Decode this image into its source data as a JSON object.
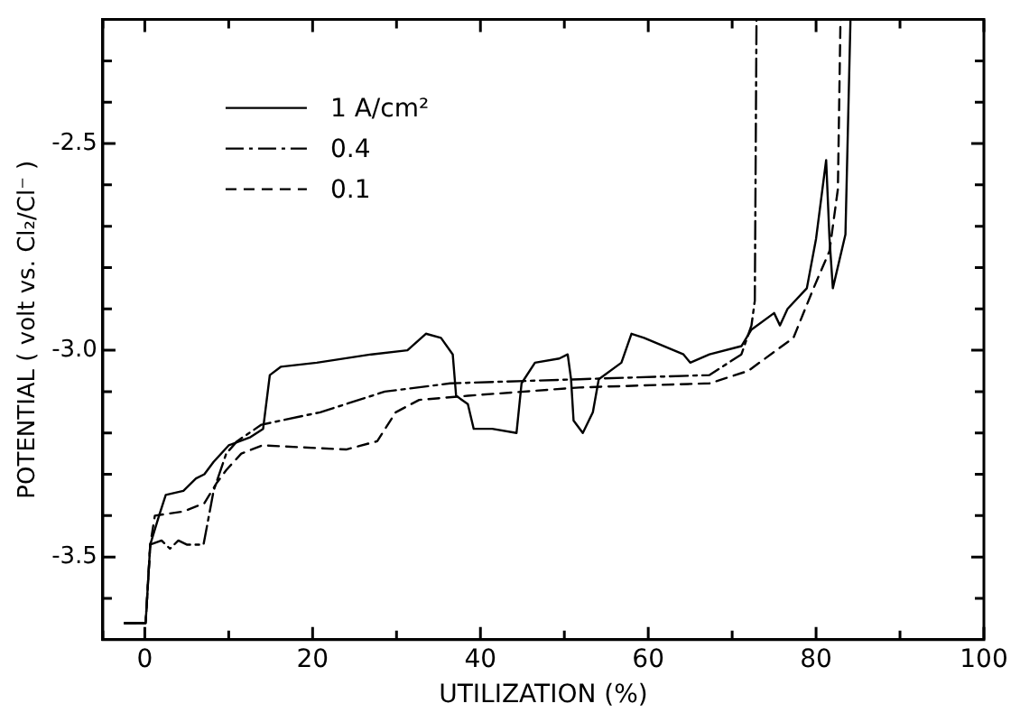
{
  "chart_data": {
    "type": "line",
    "xlabel": "UTILIZATION (%)",
    "ylabel": "POTENTIAL ( volt vs. Cl₂/Cl⁻ )",
    "xlim": [
      -5,
      100
    ],
    "ylim": [
      -3.7,
      -2.2
    ],
    "xticks": [
      {
        "value": -5,
        "label": null
      },
      0,
      {
        "value": 10,
        "label": null
      },
      20,
      {
        "value": 30,
        "label": null
      },
      40,
      {
        "value": 50,
        "label": null
      },
      60,
      {
        "value": 70,
        "label": null
      },
      80,
      {
        "value": 90,
        "label": null
      },
      100
    ],
    "yticks": [
      {
        "value": -3.6,
        "label": null
      },
      {
        "value": -3.5,
        "label": "-3.5"
      },
      {
        "value": -3.4,
        "label": null
      },
      {
        "value": -3.3,
        "label": null
      },
      {
        "value": -3.2,
        "label": null
      },
      {
        "value": -3.1,
        "label": null
      },
      {
        "value": -3.0,
        "label": "-3.0"
      },
      {
        "value": -2.9,
        "label": null
      },
      {
        "value": -2.8,
        "label": null
      },
      {
        "value": -2.7,
        "label": null
      },
      {
        "value": -2.6,
        "label": null
      },
      {
        "value": -2.5,
        "label": "-2.5"
      },
      {
        "value": -2.4,
        "label": null
      },
      {
        "value": -2.3,
        "label": null
      }
    ],
    "legend": "top left",
    "marker": "none",
    "grid": false,
    "series": [
      {
        "name": "1 A/cm²",
        "color": "#000000",
        "line_style": "solid",
        "x": [
          -2.4,
          0.1,
          0.65,
          1.7,
          2.5,
          4.6,
          6.1,
          7.1,
          8.2,
          10,
          12.6,
          14.1,
          14.9,
          16.2,
          20.5,
          27,
          31.3,
          33.5,
          35.3,
          36.7,
          37.1,
          38.5,
          39.2,
          41.4,
          44.3,
          44.9,
          46.5,
          49.4,
          50.4,
          50.8,
          51.1,
          52.2,
          53.4,
          54.1,
          56.8,
          58,
          59.5,
          64.2,
          65,
          67.3,
          71.1,
          72.3,
          75,
          75.7,
          76.6,
          78.9,
          80,
          81.2,
          81.6,
          82,
          83.5,
          84.1
        ],
        "values": [
          -3.66,
          -3.66,
          -3.47,
          -3.4,
          -3.35,
          -3.34,
          -3.31,
          -3.3,
          -3.27,
          -3.23,
          -3.21,
          -3.19,
          -3.06,
          -3.04,
          -3.03,
          -3.01,
          -3,
          -2.96,
          -2.97,
          -3.01,
          -3.11,
          -3.13,
          -3.19,
          -3.19,
          -3.2,
          -3.08,
          -3.03,
          -3.02,
          -3.01,
          -3.07,
          -3.17,
          -3.2,
          -3.15,
          -3.07,
          -3.03,
          -2.96,
          -2.97,
          -3.01,
          -3.03,
          -3.01,
          -2.99,
          -2.95,
          -2.91,
          -2.94,
          -2.9,
          -2.85,
          -2.73,
          -2.54,
          -2.73,
          -2.85,
          -2.72,
          -2.2
        ]
      },
      {
        "name": "0.4",
        "color": "#000000",
        "line_style": "dashdot",
        "x": [
          -2.4,
          0.1,
          0.65,
          2,
          3,
          4,
          5,
          7,
          8.2,
          9.7,
          11,
          13.9,
          20.9,
          28.6,
          36.4,
          51.8,
          67.3,
          71.1,
          72.3,
          72.7,
          72.9
        ],
        "values": [
          -3.66,
          -3.66,
          -3.47,
          -3.46,
          -3.48,
          -3.46,
          -3.47,
          -3.47,
          -3.34,
          -3.25,
          -3.22,
          -3.18,
          -3.15,
          -3.1,
          -3.08,
          -3.07,
          -3.06,
          -3.01,
          -2.94,
          -2.88,
          -2.2
        ]
      },
      {
        "name": "0.1",
        "color": "#000000",
        "line_style": "dashed",
        "x": [
          -2.4,
          0.1,
          0.65,
          1.2,
          4.6,
          7.1,
          8.6,
          9.7,
          11.5,
          14,
          24,
          27.7,
          29.9,
          32.7,
          38.5,
          51.8,
          67.3,
          71.9,
          77.3,
          79.7,
          81.6,
          82.6,
          82.9,
          83
        ],
        "values": [
          -3.66,
          -3.66,
          -3.47,
          -3.4,
          -3.39,
          -3.37,
          -3.32,
          -3.29,
          -3.25,
          -3.23,
          -3.24,
          -3.22,
          -3.15,
          -3.12,
          -3.11,
          -3.09,
          -3.08,
          -3.05,
          -2.97,
          -2.85,
          -2.76,
          -2.61,
          -2.21,
          -2.2
        ]
      }
    ]
  }
}
